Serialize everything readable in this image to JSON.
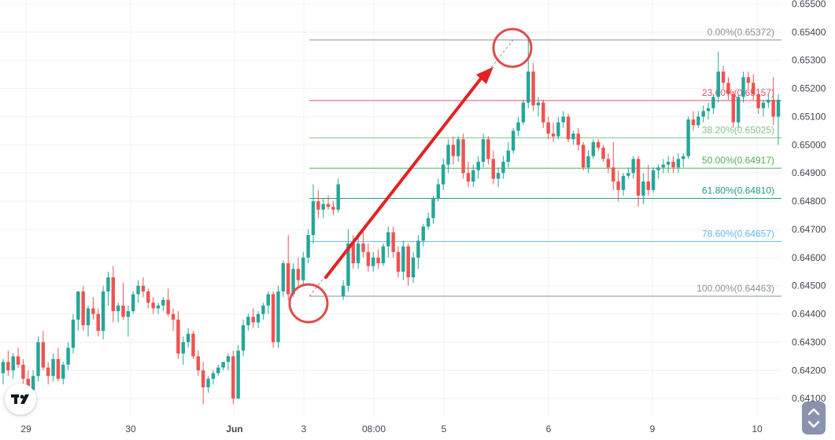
{
  "chart_data": {
    "type": "candlestick",
    "y_axis": {
      "ticks": [
        "0.65500",
        "0.65400",
        "0.65300",
        "0.65200",
        "0.65100",
        "0.65000",
        "0.64900",
        "0.64800",
        "0.64700",
        "0.64600",
        "0.64500",
        "0.64400",
        "0.64300",
        "0.64200",
        "0.64100"
      ],
      "range": [
        0.6407,
        0.655
      ]
    },
    "x_axis": {
      "ticks": [
        "29",
        "30",
        "Jun",
        "3",
        "08:00",
        "5",
        "6",
        "9",
        "10"
      ]
    },
    "fibonacci": {
      "levels": [
        {
          "label": "0.00%(0.65372)",
          "value": 0.65372,
          "color": "#8a8f99"
        },
        {
          "label": "23.60%(0.65157)",
          "value": 0.65157,
          "color": "#e0506a"
        },
        {
          "label": "38.20%(0.65025)",
          "value": 0.65025,
          "color": "#7cc47f"
        },
        {
          "label": "50.00%(0.64917)",
          "value": 0.64917,
          "color": "#4caf50"
        },
        {
          "label": "61.80%(0.64810)",
          "value": 0.6481,
          "color": "#1e9c82"
        },
        {
          "label": "78.60%(0.64657)",
          "value": 0.64657,
          "color": "#64b5f6"
        },
        {
          "label": "100.00%(0.64463)",
          "value": 0.64463,
          "color": "#8a8f99"
        }
      ]
    },
    "colors": {
      "up": "#26a69a",
      "down": "#ef5350",
      "arrow": "#e32222",
      "circle": "#e24a4a"
    },
    "candles": [
      [
        0.6419,
        0.6424,
        0.6415,
        0.6423
      ],
      [
        0.6423,
        0.6427,
        0.6418,
        0.642
      ],
      [
        0.642,
        0.6426,
        0.6417,
        0.6425
      ],
      [
        0.6425,
        0.6428,
        0.6421,
        0.6422
      ],
      [
        0.6422,
        0.6424,
        0.6415,
        0.6417
      ],
      [
        0.6417,
        0.642,
        0.641,
        0.6413
      ],
      [
        0.6413,
        0.642,
        0.641,
        0.6418
      ],
      [
        0.6418,
        0.6432,
        0.6416,
        0.643
      ],
      [
        0.643,
        0.6434,
        0.642,
        0.6421
      ],
      [
        0.6421,
        0.6423,
        0.6415,
        0.6418
      ],
      [
        0.6418,
        0.6426,
        0.6416,
        0.6424
      ],
      [
        0.6424,
        0.6428,
        0.6416,
        0.6417
      ],
      [
        0.6417,
        0.6423,
        0.6415,
        0.6422
      ],
      [
        0.6422,
        0.643,
        0.642,
        0.6428
      ],
      [
        0.6428,
        0.644,
        0.6426,
        0.6438
      ],
      [
        0.6438,
        0.6448,
        0.6434,
        0.6448
      ],
      [
        0.6448,
        0.645,
        0.6434,
        0.6436
      ],
      [
        0.6436,
        0.6443,
        0.6432,
        0.6442
      ],
      [
        0.6442,
        0.6446,
        0.6438,
        0.644
      ],
      [
        0.644,
        0.6442,
        0.6432,
        0.6434
      ],
      [
        0.6434,
        0.645,
        0.6431,
        0.6448
      ],
      [
        0.6448,
        0.6455,
        0.6443,
        0.6453
      ],
      [
        0.6453,
        0.6457,
        0.6437,
        0.6441
      ],
      [
        0.6441,
        0.6444,
        0.6437,
        0.6443
      ],
      [
        0.6443,
        0.6451,
        0.6438,
        0.6439
      ],
      [
        0.6439,
        0.6443,
        0.6432,
        0.6441
      ],
      [
        0.6441,
        0.6448,
        0.644,
        0.6447
      ],
      [
        0.6447,
        0.6452,
        0.6444,
        0.645
      ],
      [
        0.645,
        0.6453,
        0.6446,
        0.6448
      ],
      [
        0.6448,
        0.6449,
        0.6442,
        0.6444
      ],
      [
        0.6444,
        0.6446,
        0.644,
        0.6442
      ],
      [
        0.6442,
        0.6444,
        0.644,
        0.6443
      ],
      [
        0.6443,
        0.6446,
        0.6441,
        0.6445
      ],
      [
        0.6445,
        0.6449,
        0.6439,
        0.644
      ],
      [
        0.644,
        0.6442,
        0.6434,
        0.6438
      ],
      [
        0.6438,
        0.6441,
        0.6424,
        0.6426
      ],
      [
        0.6426,
        0.6432,
        0.6422,
        0.643
      ],
      [
        0.643,
        0.6435,
        0.6428,
        0.6433
      ],
      [
        0.6433,
        0.6434,
        0.6424,
        0.6425
      ],
      [
        0.6425,
        0.6427,
        0.6418,
        0.642
      ],
      [
        0.642,
        0.6423,
        0.6408,
        0.6414
      ],
      [
        0.6414,
        0.6418,
        0.6412,
        0.6417
      ],
      [
        0.6417,
        0.642,
        0.6415,
        0.6419
      ],
      [
        0.6419,
        0.6422,
        0.6418,
        0.6421
      ],
      [
        0.6421,
        0.6423,
        0.642,
        0.6423
      ],
      [
        0.6423,
        0.6426,
        0.642,
        0.6425
      ],
      [
        0.6425,
        0.6427,
        0.6408,
        0.641
      ],
      [
        0.641,
        0.6429,
        0.641,
        0.6427
      ],
      [
        0.6427,
        0.6438,
        0.6425,
        0.6436
      ],
      [
        0.6436,
        0.644,
        0.6434,
        0.6439
      ],
      [
        0.6439,
        0.6442,
        0.6435,
        0.6437
      ],
      [
        0.6437,
        0.6441,
        0.6435,
        0.644
      ],
      [
        0.644,
        0.6444,
        0.6438,
        0.6443
      ],
      [
        0.6443,
        0.6448,
        0.644,
        0.6447
      ],
      [
        0.6447,
        0.6448,
        0.6428,
        0.643
      ],
      [
        0.643,
        0.645,
        0.6428,
        0.6448
      ],
      [
        0.6448,
        0.6459,
        0.6446,
        0.6458
      ],
      [
        0.6458,
        0.6468,
        0.6445,
        0.6447
      ],
      [
        0.6447,
        0.6458,
        0.6446,
        0.6456
      ],
      [
        0.6456,
        0.646,
        0.6449,
        0.6452
      ],
      [
        0.6452,
        0.6462,
        0.645,
        0.646
      ],
      [
        0.646,
        0.647,
        0.6458,
        0.6468
      ],
      [
        0.6468,
        0.6486,
        0.6465,
        0.648
      ],
      [
        0.648,
        0.6484,
        0.6474,
        0.6477
      ],
      [
        0.6477,
        0.6481,
        0.6474,
        0.6479
      ],
      [
        0.6479,
        0.6482,
        0.6477,
        0.6478
      ],
      [
        0.6478,
        0.648,
        0.6475,
        0.6477
      ],
      [
        0.6477,
        0.6488,
        0.6476,
        0.6486
      ],
      [
        0.64463,
        0.6452,
        0.6445,
        0.645
      ],
      [
        0.645,
        0.647,
        0.6448,
        0.6465
      ],
      [
        0.6465,
        0.6468,
        0.6456,
        0.6458
      ],
      [
        0.6458,
        0.6467,
        0.6456,
        0.6465
      ],
      [
        0.6465,
        0.6469,
        0.646,
        0.6462
      ],
      [
        0.6462,
        0.6465,
        0.6455,
        0.6457
      ],
      [
        0.6457,
        0.6462,
        0.6455,
        0.646
      ],
      [
        0.646,
        0.6463,
        0.6456,
        0.6458
      ],
      [
        0.6458,
        0.6465,
        0.6457,
        0.6464
      ],
      [
        0.6464,
        0.6471,
        0.646,
        0.6469
      ],
      [
        0.6469,
        0.6471,
        0.646,
        0.6462
      ],
      [
        0.6462,
        0.6464,
        0.6453,
        0.6455
      ],
      [
        0.6455,
        0.6466,
        0.6452,
        0.6464
      ],
      [
        0.6464,
        0.6465,
        0.645,
        0.6453
      ],
      [
        0.6453,
        0.6462,
        0.6451,
        0.646
      ],
      [
        0.646,
        0.6468,
        0.6456,
        0.6466
      ],
      [
        0.6466,
        0.6472,
        0.6464,
        0.6471
      ],
      [
        0.6471,
        0.6476,
        0.647,
        0.6474
      ],
      [
        0.6474,
        0.6482,
        0.6472,
        0.6481
      ],
      [
        0.6481,
        0.6488,
        0.648,
        0.6486
      ],
      [
        0.6486,
        0.6495,
        0.6484,
        0.6493
      ],
      [
        0.6493,
        0.6502,
        0.649,
        0.65
      ],
      [
        0.65,
        0.6503,
        0.6493,
        0.6496
      ],
      [
        0.6496,
        0.6503,
        0.6494,
        0.6502
      ],
      [
        0.6502,
        0.6504,
        0.6488,
        0.649
      ],
      [
        0.649,
        0.6494,
        0.6485,
        0.6487
      ],
      [
        0.6487,
        0.6493,
        0.6485,
        0.6491
      ],
      [
        0.6491,
        0.6496,
        0.6488,
        0.6494
      ],
      [
        0.6494,
        0.6504,
        0.6492,
        0.6502
      ],
      [
        0.6502,
        0.6503,
        0.6493,
        0.6495
      ],
      [
        0.6495,
        0.6498,
        0.6486,
        0.6488
      ],
      [
        0.6488,
        0.6492,
        0.6485,
        0.649
      ],
      [
        0.649,
        0.6496,
        0.6488,
        0.6494
      ],
      [
        0.6494,
        0.6501,
        0.6492,
        0.6498
      ],
      [
        0.6498,
        0.6506,
        0.6497,
        0.6505
      ],
      [
        0.6505,
        0.651,
        0.6503,
        0.6508
      ],
      [
        0.6508,
        0.6516,
        0.6507,
        0.6515
      ],
      [
        0.6515,
        0.65372,
        0.6513,
        0.6526
      ],
      [
        0.6526,
        0.6529,
        0.6512,
        0.6514
      ],
      [
        0.6514,
        0.6517,
        0.651,
        0.6515
      ],
      [
        0.6515,
        0.6516,
        0.6506,
        0.6508
      ],
      [
        0.6508,
        0.651,
        0.6502,
        0.6504
      ],
      [
        0.6504,
        0.6508,
        0.6501,
        0.6503
      ],
      [
        0.6503,
        0.651,
        0.6502,
        0.6508
      ],
      [
        0.6508,
        0.6512,
        0.6506,
        0.651
      ],
      [
        0.651,
        0.6511,
        0.6501,
        0.6502
      ],
      [
        0.6502,
        0.6505,
        0.65,
        0.6504
      ],
      [
        0.6504,
        0.6506,
        0.6498,
        0.65
      ],
      [
        0.65,
        0.6501,
        0.6491,
        0.6492
      ],
      [
        0.6492,
        0.6498,
        0.649,
        0.6496
      ],
      [
        0.6496,
        0.6502,
        0.6495,
        0.6501
      ],
      [
        0.6501,
        0.6502,
        0.6498,
        0.6499
      ],
      [
        0.6499,
        0.65,
        0.6494,
        0.6495
      ],
      [
        0.6495,
        0.6497,
        0.649,
        0.6492
      ],
      [
        0.6492,
        0.6501,
        0.6484,
        0.6487
      ],
      [
        0.6487,
        0.6491,
        0.648,
        0.6484
      ],
      [
        0.6484,
        0.649,
        0.6482,
        0.6489
      ],
      [
        0.6489,
        0.6492,
        0.6488,
        0.649
      ],
      [
        0.649,
        0.6496,
        0.6488,
        0.6495
      ],
      [
        0.6495,
        0.6496,
        0.6478,
        0.6482
      ],
      [
        0.6482,
        0.649,
        0.6479,
        0.6487
      ],
      [
        0.6487,
        0.6493,
        0.6482,
        0.6484
      ],
      [
        0.6484,
        0.6492,
        0.6483,
        0.6491
      ],
      [
        0.6491,
        0.6493,
        0.6488,
        0.6492
      ],
      [
        0.6492,
        0.6495,
        0.649,
        0.6493
      ],
      [
        0.6493,
        0.6496,
        0.649,
        0.6494
      ],
      [
        0.6494,
        0.6496,
        0.649,
        0.6492
      ],
      [
        0.6492,
        0.6497,
        0.649,
        0.6495
      ],
      [
        0.6495,
        0.6497,
        0.6492,
        0.6496
      ],
      [
        0.6496,
        0.651,
        0.6495,
        0.6509
      ],
      [
        0.6509,
        0.6512,
        0.6505,
        0.6507
      ],
      [
        0.6507,
        0.6512,
        0.6506,
        0.651
      ],
      [
        0.651,
        0.6514,
        0.6508,
        0.6512
      ],
      [
        0.6512,
        0.6515,
        0.6509,
        0.6513
      ],
      [
        0.6513,
        0.6518,
        0.6511,
        0.6517
      ],
      [
        0.6517,
        0.6533,
        0.6515,
        0.6526
      ],
      [
        0.6526,
        0.6528,
        0.652,
        0.6522
      ],
      [
        0.6522,
        0.6524,
        0.6516,
        0.6518
      ],
      [
        0.6518,
        0.6519,
        0.6506,
        0.6508
      ],
      [
        0.6508,
        0.6518,
        0.6506,
        0.6517
      ],
      [
        0.6517,
        0.6526,
        0.6515,
        0.6524
      ],
      [
        0.6524,
        0.6526,
        0.652,
        0.6522
      ],
      [
        0.6522,
        0.6525,
        0.6516,
        0.6518
      ],
      [
        0.6518,
        0.652,
        0.6511,
        0.6513
      ],
      [
        0.6513,
        0.6516,
        0.651,
        0.6515
      ],
      [
        0.6515,
        0.6518,
        0.6513,
        0.6516
      ],
      [
        0.6516,
        0.6524,
        0.6507,
        0.651
      ],
      [
        0.651,
        0.6518,
        0.65,
        0.6516
      ]
    ]
  }
}
